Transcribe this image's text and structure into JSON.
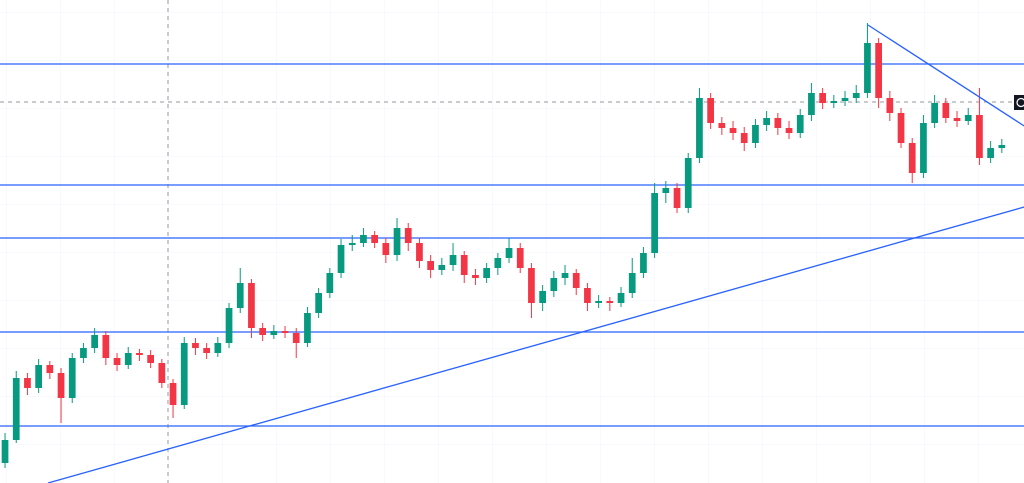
{
  "chart_data": {
    "type": "candlestick",
    "xlim": [
      -0.45,
      90.98
    ],
    "ylim": [
      0,
      483
    ],
    "up_color": "#089981",
    "down_color": "#f23645",
    "line_color": "#2962ff",
    "grid": true,
    "open": [
      20,
      43,
      105,
      95,
      118,
      110,
      85,
      125,
      135,
      148,
      125,
      118,
      130,
      128,
      120,
      100,
      78,
      140,
      135,
      130,
      140,
      175,
      200,
      155,
      148,
      152,
      150,
      140,
      170,
      190,
      210,
      238,
      240,
      248,
      240,
      228,
      255,
      240,
      222,
      213,
      218,
      228,
      208,
      205,
      215,
      225,
      235,
      215,
      180,
      192,
      205,
      210,
      195,
      180,
      182,
      180,
      190,
      210,
      230,
      290,
      295,
      275,
      325,
      385,
      360,
      355,
      350,
      340,
      358,
      365,
      355,
      350,
      368,
      390,
      380,
      382,
      385,
      390,
      440,
      385,
      370,
      340,
      310,
      360,
      380,
      365,
      362,
      368,
      325,
      335
    ],
    "high": [
      50,
      112,
      110,
      124,
      122,
      115,
      130,
      140,
      155,
      152,
      130,
      136,
      134,
      133,
      124,
      104,
      146,
      145,
      140,
      146,
      180,
      215,
      204,
      160,
      158,
      157,
      155,
      176,
      195,
      215,
      244,
      248,
      255,
      252,
      245,
      265,
      260,
      245,
      228,
      225,
      240,
      232,
      214,
      220,
      230,
      245,
      240,
      220,
      198,
      212,
      218,
      214,
      200,
      188,
      186,
      196,
      225,
      236,
      300,
      302,
      300,
      330,
      395,
      390,
      366,
      362,
      356,
      364,
      372,
      370,
      362,
      374,
      400,
      395,
      388,
      392,
      398,
      460,
      445,
      392,
      375,
      345,
      368,
      388,
      385,
      372,
      375,
      395,
      342,
      344
    ],
    "low": [
      15,
      40,
      88,
      90,
      104,
      60,
      80,
      120,
      130,
      118,
      112,
      114,
      122,
      115,
      95,
      65,
      74,
      128,
      124,
      126,
      135,
      170,
      145,
      142,
      144,
      145,
      125,
      136,
      165,
      185,
      205,
      232,
      236,
      235,
      220,
      222,
      232,
      215,
      205,
      208,
      212,
      200,
      198,
      200,
      208,
      220,
      210,
      165,
      172,
      186,
      198,
      188,
      172,
      175,
      172,
      176,
      185,
      205,
      225,
      280,
      270,
      270,
      320,
      354,
      348,
      343,
      332,
      335,
      352,
      348,
      344,
      345,
      362,
      374,
      375,
      377,
      380,
      385,
      375,
      362,
      335,
      300,
      305,
      355,
      360,
      356,
      358,
      318,
      320,
      330
    ],
    "close": [
      43,
      105,
      95,
      118,
      110,
      85,
      125,
      135,
      148,
      125,
      118,
      130,
      128,
      120,
      100,
      78,
      140,
      135,
      130,
      140,
      175,
      200,
      155,
      148,
      152,
      150,
      140,
      170,
      190,
      210,
      238,
      240,
      248,
      240,
      228,
      255,
      240,
      222,
      213,
      218,
      228,
      208,
      205,
      215,
      225,
      235,
      215,
      180,
      192,
      205,
      210,
      195,
      180,
      182,
      180,
      190,
      210,
      230,
      290,
      295,
      275,
      325,
      385,
      360,
      355,
      350,
      340,
      358,
      365,
      355,
      350,
      368,
      390,
      380,
      382,
      385,
      390,
      440,
      385,
      370,
      340,
      310,
      360,
      380,
      365,
      362,
      368,
      325,
      335,
      338
    ],
    "levels": [
      419,
      298,
      245,
      151,
      57
    ],
    "trendlines": [
      {
        "x": [
          3.84,
          91
        ],
        "y": [
          0,
          276
        ]
      },
      {
        "x": [
          77.05,
          91
        ],
        "y": [
          458,
          357
        ]
      }
    ],
    "crosshair": {
      "x": 14.55,
      "y": 381
    }
  }
}
